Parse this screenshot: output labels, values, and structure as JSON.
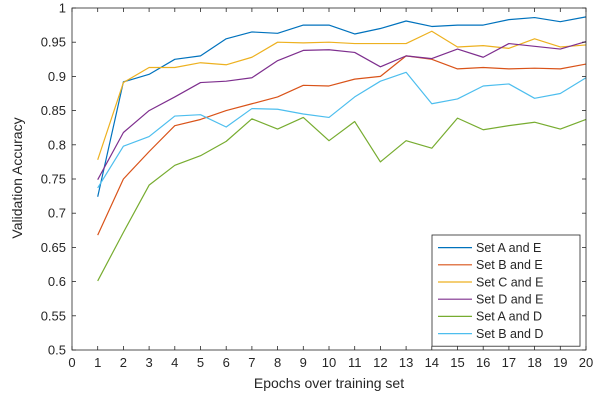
{
  "chart_data": {
    "type": "line",
    "xlabel": "Epochs over training set",
    "ylabel": "Validation Accuracy",
    "xlim": [
      0,
      20
    ],
    "ylim": [
      0.5,
      1
    ],
    "xticks": [
      "0",
      "1",
      "2",
      "3",
      "4",
      "5",
      "6",
      "7",
      "8",
      "9",
      "10",
      "11",
      "12",
      "13",
      "14",
      "15",
      "16",
      "17",
      "18",
      "19",
      "20"
    ],
    "yticks": [
      "0.5",
      "0.55",
      "0.6",
      "0.65",
      "0.7",
      "0.75",
      "0.8",
      "0.85",
      "0.9",
      "0.95",
      "1"
    ],
    "grid": false,
    "legend_position": "bottom-right",
    "x": [
      1,
      2,
      3,
      4,
      5,
      6,
      7,
      8,
      9,
      10,
      11,
      12,
      13,
      14,
      15,
      16,
      17,
      18,
      19,
      20
    ],
    "series": [
      {
        "name": "Set A and E",
        "color": "#0072BD",
        "values": [
          0.724,
          0.892,
          0.903,
          0.925,
          0.93,
          0.955,
          0.965,
          0.963,
          0.975,
          0.975,
          0.962,
          0.97,
          0.981,
          0.973,
          0.975,
          0.975,
          0.983,
          0.986,
          0.98,
          0.987
        ]
      },
      {
        "name": "Set B and E",
        "color": "#D95319",
        "values": [
          0.668,
          0.75,
          0.79,
          0.828,
          0.837,
          0.85,
          0.86,
          0.87,
          0.887,
          0.886,
          0.896,
          0.9,
          0.93,
          0.925,
          0.911,
          0.913,
          0.911,
          0.912,
          0.911,
          0.918
        ]
      },
      {
        "name": "Set C and E",
        "color": "#EDB120",
        "values": [
          0.778,
          0.891,
          0.913,
          0.913,
          0.92,
          0.917,
          0.928,
          0.95,
          0.949,
          0.95,
          0.948,
          0.948,
          0.948,
          0.966,
          0.943,
          0.945,
          0.941,
          0.955,
          0.943,
          0.946
        ]
      },
      {
        "name": "Set D and E",
        "color": "#7E2F8E",
        "values": [
          0.749,
          0.818,
          0.85,
          0.87,
          0.891,
          0.893,
          0.898,
          0.923,
          0.938,
          0.939,
          0.935,
          0.914,
          0.93,
          0.926,
          0.94,
          0.928,
          0.948,
          0.944,
          0.94,
          0.951
        ]
      },
      {
        "name": "Set A and D",
        "color": "#77AC30",
        "values": [
          0.601,
          0.672,
          0.741,
          0.77,
          0.784,
          0.805,
          0.838,
          0.823,
          0.84,
          0.806,
          0.834,
          0.775,
          0.806,
          0.795,
          0.839,
          0.822,
          0.828,
          0.833,
          0.823,
          0.837
        ]
      },
      {
        "name": "Set B and D",
        "color": "#4DBEEE",
        "values": [
          0.737,
          0.798,
          0.812,
          0.842,
          0.844,
          0.826,
          0.853,
          0.852,
          0.845,
          0.84,
          0.87,
          0.893,
          0.906,
          0.86,
          0.867,
          0.886,
          0.889,
          0.868,
          0.875,
          0.898
        ]
      }
    ]
  }
}
